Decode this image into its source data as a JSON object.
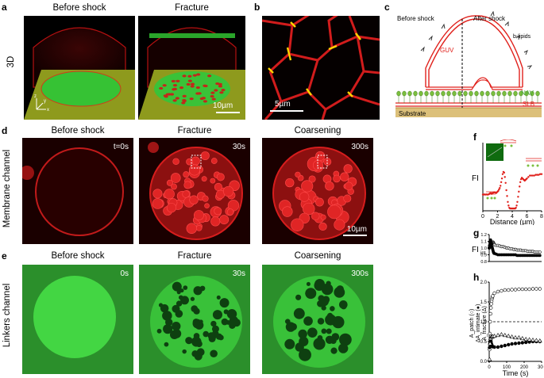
{
  "panel_letters": {
    "a": "a",
    "b": "b",
    "c": "c",
    "d": "d",
    "e": "e",
    "f": "f",
    "g": "g",
    "h": "h"
  },
  "row_a": {
    "side_label": "3D",
    "titles": [
      "Before shock",
      "Fracture"
    ],
    "scalebar": "10µm",
    "axes": {
      "x": "x",
      "y": "y",
      "z": "z"
    }
  },
  "panel_b": {
    "scalebar": "5µm"
  },
  "panel_c": {
    "before": "Before shock",
    "after": "After shock",
    "blipids": "b-lipids",
    "guv": "GUV",
    "nav": "NAV",
    "slb": "SLB",
    "substrate": "Substrate"
  },
  "row_d": {
    "side_label": "Membrane channel",
    "titles": [
      "Before shock",
      "Fracture",
      "Coarsening"
    ],
    "times": [
      "t=0s",
      "30s",
      "300s"
    ],
    "scalebar": "10µm"
  },
  "row_e": {
    "side_label": "Linkers channel",
    "titles": [
      "Before shock",
      "Fracture",
      "Coarsening"
    ],
    "times": [
      "0s",
      "30s",
      "300s"
    ]
  },
  "colors": {
    "membrane": "#e0211c",
    "green": "#2fd42f",
    "substrate": "#dcc07a",
    "nav": "#7bbf3e"
  },
  "chart_data": [
    {
      "panel": "f",
      "type": "scatter",
      "xlabel": "Distance (µm)",
      "ylabel": "FI",
      "xlim": [
        0,
        8
      ],
      "xticks": [
        "0",
        "2",
        "4",
        "6",
        "8"
      ],
      "series": [
        {
          "values": [
            [
              0.0,
              1.0
            ],
            [
              0.1,
              1.0
            ],
            [
              0.2,
              1.01
            ],
            [
              0.3,
              1.0
            ],
            [
              0.4,
              1.0
            ],
            [
              0.5,
              1.01
            ],
            [
              0.6,
              1.0
            ],
            [
              0.7,
              1.0
            ],
            [
              0.8,
              1.02
            ],
            [
              0.9,
              1.05
            ],
            [
              1.0,
              1.1
            ],
            [
              1.1,
              1.1
            ],
            [
              1.2,
              1.05
            ],
            [
              1.3,
              1.1
            ],
            [
              1.4,
              1.12
            ],
            [
              1.5,
              1.15
            ],
            [
              1.6,
              1.15
            ],
            [
              1.7,
              1.15
            ],
            [
              1.8,
              1.1
            ],
            [
              1.9,
              1.15
            ],
            [
              2.0,
              1.2
            ],
            [
              2.1,
              1.25
            ],
            [
              2.2,
              1.35
            ],
            [
              2.3,
              1.45
            ],
            [
              2.4,
              1.6
            ],
            [
              2.5,
              1.85
            ],
            [
              2.6,
              2.1
            ],
            [
              2.7,
              2.4
            ],
            [
              2.8,
              2.55
            ],
            [
              2.9,
              2.5
            ],
            [
              3.0,
              2.2
            ],
            [
              3.1,
              1.8
            ],
            [
              3.2,
              1.3
            ],
            [
              3.3,
              0.9
            ],
            [
              3.4,
              0.5
            ],
            [
              3.5,
              0.25
            ],
            [
              3.6,
              0.1
            ],
            [
              3.7,
              0.05
            ],
            [
              3.8,
              0.05
            ],
            [
              3.9,
              0.05
            ],
            [
              4.0,
              0.05
            ],
            [
              4.1,
              0.05
            ],
            [
              4.2,
              0.05
            ],
            [
              4.3,
              0.05
            ],
            [
              4.4,
              0.05
            ],
            [
              4.5,
              0.1
            ],
            [
              4.6,
              0.25
            ],
            [
              4.7,
              0.5
            ],
            [
              4.8,
              0.85
            ],
            [
              4.9,
              1.2
            ],
            [
              5.0,
              1.55
            ],
            [
              5.1,
              1.85
            ],
            [
              5.2,
              2.05
            ],
            [
              5.3,
              2.15
            ],
            [
              5.4,
              2.1
            ],
            [
              5.5,
              2.05
            ],
            [
              5.6,
              2.0
            ],
            [
              5.7,
              1.95
            ],
            [
              5.8,
              2.0
            ],
            [
              5.9,
              2.05
            ],
            [
              6.0,
              2.1
            ],
            [
              6.2,
              2.2
            ],
            [
              6.4,
              2.3
            ],
            [
              6.6,
              2.3
            ],
            [
              6.8,
              2.3
            ],
            [
              7.0,
              2.3
            ],
            [
              7.2,
              2.35
            ],
            [
              7.4,
              2.35
            ],
            [
              7.6,
              2.35
            ],
            [
              7.8,
              2.4
            ],
            [
              8.0,
              2.4
            ]
          ]
        }
      ]
    },
    {
      "panel": "g",
      "type": "scatter",
      "ylabel": "FI",
      "ylabel_sub": "int",
      "ylim": [
        0.8,
        1.2
      ],
      "yticks": [
        "0.8",
        "0.9",
        "1.0",
        "1.1",
        "1.2"
      ],
      "x": [
        0,
        2,
        4,
        6,
        8,
        10,
        12,
        14,
        16,
        18,
        20,
        22,
        24,
        26,
        28,
        30,
        40,
        50,
        60,
        70,
        80,
        90,
        100,
        110,
        120,
        130,
        140,
        150,
        160,
        170,
        180,
        190,
        200,
        210,
        220,
        230,
        240,
        250,
        260,
        270,
        280,
        290
      ],
      "series": [
        {
          "marker": "open",
          "values": [
            1.0,
            1.02,
            1.03,
            1.04,
            1.05,
            1.06,
            1.07,
            1.07,
            1.08,
            1.08,
            1.08,
            1.09,
            1.08,
            1.07,
            1.06,
            1.05,
            1.04,
            1.04,
            1.03,
            1.02,
            1.02,
            1.01,
            1.0,
            1.0,
            0.99,
            0.99,
            0.98,
            0.98,
            0.97,
            0.97,
            0.97,
            0.96,
            0.96,
            0.96,
            0.95,
            0.95,
            0.95,
            0.95,
            0.94,
            0.94,
            0.94,
            0.94
          ]
        },
        {
          "marker": "filled",
          "values": [
            1.0,
            1.04,
            1.08,
            1.1,
            1.12,
            1.1,
            1.08,
            1.06,
            1.02,
            1.0,
            0.98,
            0.96,
            0.94,
            0.93,
            0.92,
            0.92,
            0.91,
            0.9,
            0.9,
            0.9,
            0.9,
            0.9,
            0.9,
            0.9,
            0.9,
            0.9,
            0.9,
            0.9,
            0.89,
            0.89,
            0.89,
            0.89,
            0.89,
            0.89,
            0.89,
            0.89,
            0.89,
            0.89,
            0.89,
            0.89,
            0.89,
            0.89
          ]
        }
      ]
    },
    {
      "panel": "h",
      "type": "scatter",
      "xlabel": "Time (s)",
      "ylabel_lines": [
        "A_patch (○)",
        "ΔA_intimate (●)",
        "A_fracture (Δ)"
      ],
      "xlim": [
        0,
        300
      ],
      "ylim": [
        0,
        2.0
      ],
      "xticks": [
        "0",
        "100",
        "200",
        "300"
      ],
      "yticks": [
        "0.0",
        "0.5",
        "1.0",
        "1.5",
        "2.0"
      ],
      "reference_line": 1.0,
      "series": [
        {
          "marker": "open-circle",
          "x": [
            2,
            4,
            6,
            8,
            10,
            12,
            14,
            16,
            18,
            20,
            30,
            50,
            70,
            90,
            110,
            130,
            150,
            170,
            190,
            210,
            230,
            250,
            270,
            290
          ],
          "values": [
            0.3,
            0.7,
            1.0,
            1.2,
            1.35,
            1.45,
            1.52,
            1.58,
            1.62,
            1.65,
            1.72,
            1.76,
            1.78,
            1.8,
            1.8,
            1.81,
            1.81,
            1.82,
            1.82,
            1.82,
            1.82,
            1.83,
            1.83,
            1.83
          ]
        },
        {
          "marker": "filled-circle",
          "x": [
            2,
            4,
            6,
            8,
            10,
            12,
            14,
            16,
            18,
            20,
            30,
            50,
            70,
            90,
            110,
            130,
            150,
            170,
            190,
            210,
            230,
            250,
            270,
            290
          ],
          "values": [
            0.35,
            0.45,
            0.5,
            0.52,
            0.5,
            0.45,
            0.42,
            0.4,
            0.38,
            0.37,
            0.36,
            0.36,
            0.38,
            0.4,
            0.42,
            0.44,
            0.45,
            0.46,
            0.47,
            0.48,
            0.49,
            0.5,
            0.5,
            0.5
          ]
        },
        {
          "marker": "open-triangle",
          "x": [
            2,
            5,
            8,
            12,
            16,
            20,
            30,
            50,
            70,
            90,
            110,
            130,
            150,
            170,
            190,
            210,
            230,
            250,
            270,
            290
          ],
          "values": [
            0.05,
            0.45,
            0.58,
            0.62,
            0.62,
            0.63,
            0.64,
            0.66,
            0.68,
            0.66,
            0.64,
            0.62,
            0.6,
            0.6,
            0.58,
            0.56,
            0.55,
            0.54,
            0.53,
            0.52
          ]
        }
      ]
    }
  ]
}
